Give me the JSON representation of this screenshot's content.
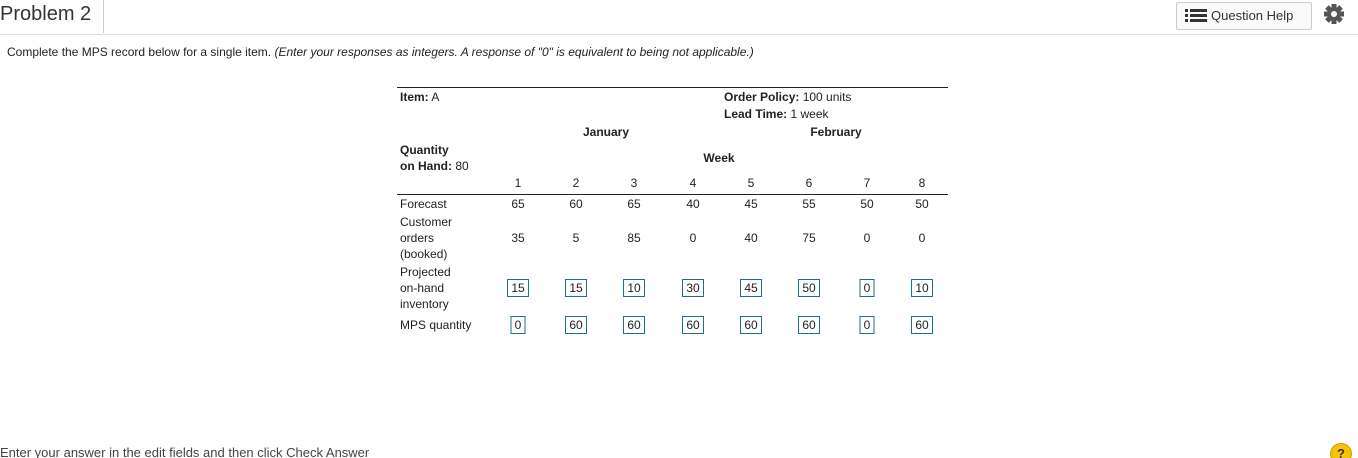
{
  "header": {
    "title": "Problem 2",
    "help_button": "Question Help"
  },
  "instructions": {
    "text": "Complete the MPS record below for a single item.",
    "note": "(Enter your responses as integers. A response of \"0\" is equivalent to being not applicable.)"
  },
  "table": {
    "item_label": "Item:",
    "item_value": "A",
    "order_policy_label": "Order Policy:",
    "order_policy_value": "100 units",
    "lead_time_label": "Lead Time:",
    "lead_time_value": "1 week",
    "months": [
      "January",
      "February"
    ],
    "quantity_label": [
      "Quantity",
      "on Hand:"
    ],
    "quantity_value": 80,
    "week_label": "Week",
    "weeks": [
      1,
      2,
      3,
      4,
      5,
      6,
      7,
      8
    ],
    "rows": [
      {
        "label": [
          "Forecast"
        ],
        "editable": false,
        "values": [
          65,
          60,
          65,
          40,
          45,
          55,
          50,
          50
        ]
      },
      {
        "label": [
          "Customer",
          "orders",
          "(booked)"
        ],
        "editable": false,
        "values": [
          35,
          5,
          85,
          0,
          40,
          75,
          0,
          0
        ]
      },
      {
        "label": [
          "Projected",
          "on-hand",
          "inventory"
        ],
        "editable": true,
        "values": [
          15,
          15,
          10,
          30,
          45,
          50,
          0,
          10
        ]
      },
      {
        "label": [
          "MPS quantity"
        ],
        "editable": true,
        "values": [
          0,
          60,
          60,
          60,
          60,
          60,
          0,
          60
        ]
      }
    ]
  },
  "footer": {
    "text": "Enter your answer in the edit fields and then click Check Answer",
    "help_icon": "?"
  }
}
